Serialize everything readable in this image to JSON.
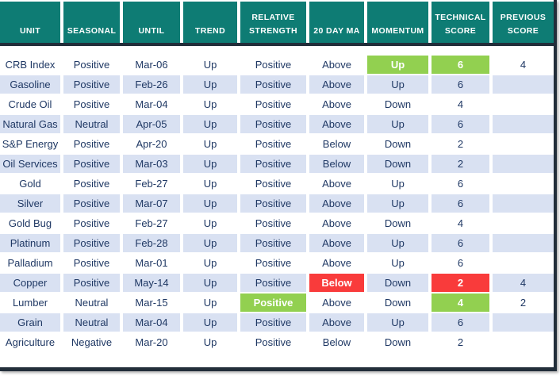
{
  "colors": {
    "header_bg": "#0E7C74",
    "border": "#222E3A",
    "alt_row_bg": "#D9E1F2",
    "text": "#1F3864",
    "highlight_green": "#92D050",
    "highlight_red": "#F93B3B"
  },
  "table": {
    "columns": [
      {
        "key": "unit",
        "label": "UNIT"
      },
      {
        "key": "seasonal",
        "label": "SEASONAL"
      },
      {
        "key": "until",
        "label": "UNTIL"
      },
      {
        "key": "trend",
        "label": "TREND"
      },
      {
        "key": "relative_strength",
        "label": "RELATIVE STRENGTH"
      },
      {
        "key": "ma20",
        "label": "20 DAY MA"
      },
      {
        "key": "momentum",
        "label": "MOMENTUM"
      },
      {
        "key": "technical_score",
        "label": "TECHNICAL SCORE"
      },
      {
        "key": "previous_score",
        "label": "PREVIOUS SCORE"
      }
    ],
    "rows": [
      {
        "unit": "CRB Index",
        "seasonal": "Positive",
        "until": "Mar-06",
        "trend": "Up",
        "relative_strength": "Positive",
        "ma20": "Above",
        "momentum": "Up",
        "technical_score": "6",
        "previous_score": "4",
        "highlights": {
          "momentum": "green",
          "technical_score": "green"
        }
      },
      {
        "unit": "Gasoline",
        "seasonal": "Positive",
        "until": "Feb-26",
        "trend": "Up",
        "relative_strength": "Positive",
        "ma20": "Above",
        "momentum": "Up",
        "technical_score": "6",
        "previous_score": "",
        "highlights": {}
      },
      {
        "unit": "Crude Oil",
        "seasonal": "Positive",
        "until": "Mar-04",
        "trend": "Up",
        "relative_strength": "Positive",
        "ma20": "Above",
        "momentum": "Down",
        "technical_score": "4",
        "previous_score": "",
        "highlights": {}
      },
      {
        "unit": "Natural Gas",
        "seasonal": "Neutral",
        "until": "Apr-05",
        "trend": "Up",
        "relative_strength": "Positive",
        "ma20": "Above",
        "momentum": "Up",
        "technical_score": "6",
        "previous_score": "",
        "highlights": {}
      },
      {
        "unit": "S&P Energy",
        "seasonal": "Positive",
        "until": "Apr-20",
        "trend": "Up",
        "relative_strength": "Positive",
        "ma20": "Below",
        "momentum": "Down",
        "technical_score": "2",
        "previous_score": "",
        "highlights": {}
      },
      {
        "unit": "Oil Services",
        "seasonal": "Positive",
        "until": "Mar-03",
        "trend": "Up",
        "relative_strength": "Positive",
        "ma20": "Below",
        "momentum": "Down",
        "technical_score": "2",
        "previous_score": "",
        "highlights": {}
      },
      {
        "unit": "Gold",
        "seasonal": "Positive",
        "until": "Feb-27",
        "trend": "Up",
        "relative_strength": "Positive",
        "ma20": "Above",
        "momentum": "Up",
        "technical_score": "6",
        "previous_score": "",
        "highlights": {}
      },
      {
        "unit": "Silver",
        "seasonal": "Positive",
        "until": "Mar-07",
        "trend": "Up",
        "relative_strength": "Positive",
        "ma20": "Above",
        "momentum": "Up",
        "technical_score": "6",
        "previous_score": "",
        "highlights": {}
      },
      {
        "unit": "Gold Bug",
        "seasonal": "Positive",
        "until": "Feb-27",
        "trend": "Up",
        "relative_strength": "Positive",
        "ma20": "Above",
        "momentum": "Down",
        "technical_score": "4",
        "previous_score": "",
        "highlights": {}
      },
      {
        "unit": "Platinum",
        "seasonal": "Positive",
        "until": "Feb-28",
        "trend": "Up",
        "relative_strength": "Positive",
        "ma20": "Above",
        "momentum": "Up",
        "technical_score": "6",
        "previous_score": "",
        "highlights": {}
      },
      {
        "unit": "Palladium",
        "seasonal": "Positive",
        "until": "Mar-01",
        "trend": "Up",
        "relative_strength": "Positive",
        "ma20": "Above",
        "momentum": "Up",
        "technical_score": "6",
        "previous_score": "",
        "highlights": {}
      },
      {
        "unit": "Copper",
        "seasonal": "Positive",
        "until": "May-14",
        "trend": "Up",
        "relative_strength": "Positive",
        "ma20": "Below",
        "momentum": "Down",
        "technical_score": "2",
        "previous_score": "4",
        "highlights": {
          "ma20": "red",
          "technical_score": "red"
        }
      },
      {
        "unit": "Lumber",
        "seasonal": "Neutral",
        "until": "Mar-15",
        "trend": "Up",
        "relative_strength": "Positive",
        "ma20": "Above",
        "momentum": "Down",
        "technical_score": "4",
        "previous_score": "2",
        "highlights": {
          "relative_strength": "green",
          "technical_score": "green"
        }
      },
      {
        "unit": "Grain",
        "seasonal": "Neutral",
        "until": "Mar-04",
        "trend": "Up",
        "relative_strength": "Positive",
        "ma20": "Above",
        "momentum": "Up",
        "technical_score": "6",
        "previous_score": "",
        "highlights": {}
      },
      {
        "unit": "Agriculture",
        "seasonal": "Negative",
        "until": "Mar-20",
        "trend": "Up",
        "relative_strength": "Positive",
        "ma20": "Below",
        "momentum": "Down",
        "technical_score": "2",
        "previous_score": "",
        "highlights": {}
      }
    ]
  }
}
